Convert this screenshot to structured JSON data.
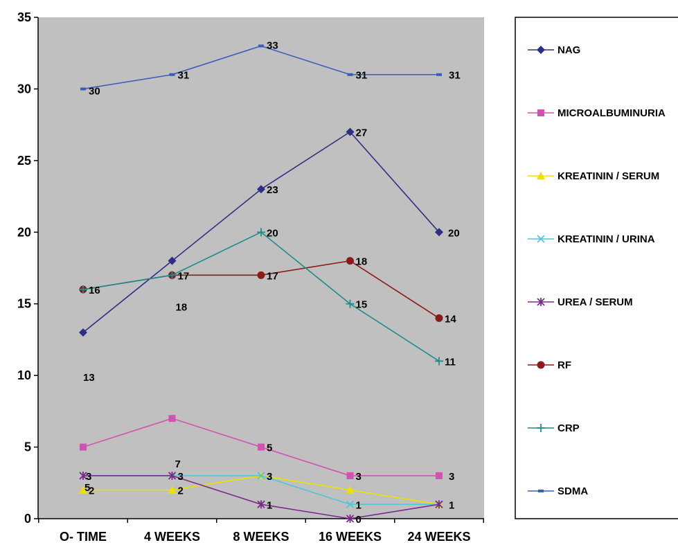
{
  "chart_data": {
    "type": "line",
    "categories": [
      "O- TIME",
      "4 WEEKS",
      "8 WEEKS",
      "16 WEEKS",
      "24 WEEKS"
    ],
    "ylim": [
      0,
      35
    ],
    "yticks": [
      "0",
      "5",
      "10",
      "15",
      "20",
      "25",
      "30",
      "35"
    ],
    "grid": false,
    "plot_background": "#c0c0c0",
    "legend_position": "right",
    "series": [
      {
        "name": "NAG",
        "values": [
          13,
          18,
          23,
          27,
          20
        ],
        "color": "#2e2e86",
        "marker": "diamond"
      },
      {
        "name": "MICROALBUMINURIA",
        "values": [
          5,
          7,
          5,
          3,
          3
        ],
        "color": "#d252b2",
        "marker": "square"
      },
      {
        "name": "KREATININ / SERUM",
        "values": [
          2,
          2,
          3,
          2,
          1
        ],
        "color": "#f0e000",
        "marker": "triangle"
      },
      {
        "name": "KREATININ / URINA",
        "values": [
          3,
          3,
          3,
          1,
          1
        ],
        "color": "#4ec8d8",
        "marker": "x"
      },
      {
        "name": "UREA / SERUM",
        "values": [
          3,
          3,
          1,
          0,
          1
        ],
        "color": "#7a2a8c",
        "marker": "star"
      },
      {
        "name": "RF",
        "values": [
          16,
          17,
          17,
          18,
          14
        ],
        "color": "#8b1a1a",
        "marker": "circle"
      },
      {
        "name": "CRP",
        "values": [
          16,
          17,
          20,
          15,
          11
        ],
        "color": "#1c8c8c",
        "marker": "plus"
      },
      {
        "name": "SDMA",
        "values": [
          30,
          31,
          33,
          31,
          31
        ],
        "color": "#3a5cbc",
        "marker": "dash"
      }
    ],
    "data_labels": [
      {
        "series": "SDMA",
        "points": [
          "30",
          "31",
          "33",
          "31",
          "31"
        ]
      },
      {
        "series": "NAG",
        "points": [
          "13",
          "18",
          "23",
          "27",
          "20"
        ]
      },
      {
        "series": "CRP",
        "points": [
          "16",
          "",
          "20",
          "15",
          "11"
        ]
      },
      {
        "series": "RF",
        "points": [
          "",
          "17",
          "17",
          "18",
          "14"
        ]
      },
      {
        "series": "MICROALBUMINURIA",
        "points": [
          "5",
          "7",
          "5",
          "3",
          "3"
        ]
      },
      {
        "series": "KREATININ / URINA",
        "points": [
          "3",
          "3",
          "3",
          "1",
          "1"
        ]
      },
      {
        "series": "KREATININ / SERUM",
        "points": [
          "2",
          "2",
          "",
          "",
          ""
        ]
      },
      {
        "series": "UREA / SERUM",
        "points": [
          "",
          "",
          "1",
          "0",
          ""
        ]
      }
    ]
  }
}
